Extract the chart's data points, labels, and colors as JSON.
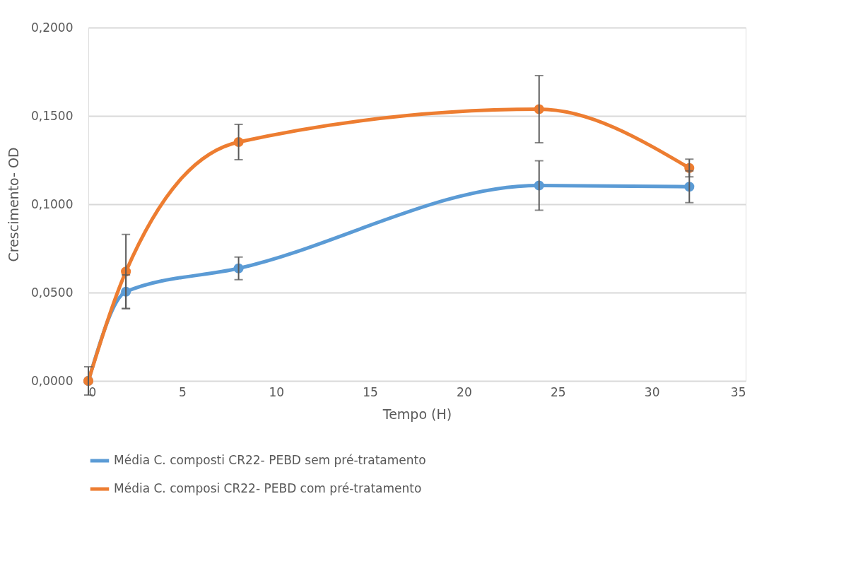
{
  "chart_data": {
    "type": "line",
    "xlabel": "Tempo (H)",
    "ylabel": "Crescimento- OD",
    "x": [
      0,
      2,
      8,
      24,
      32
    ],
    "series": [
      {
        "name": "Média C. composti CR22- PEBD sem pré-tratamento",
        "color": "#5b9bd5",
        "values": [
          0,
          0.0505,
          0.0637,
          0.1106,
          0.1099
        ],
        "errors": [
          null,
          0.0095,
          0.0064,
          0.014,
          0.009
        ]
      },
      {
        "name": "Média  C. composi CR22-  PEBD com pré-tratamento",
        "color": "#ed7d31",
        "values": [
          0,
          0.0619,
          0.1352,
          0.1538,
          0.1205
        ],
        "errors": [
          0.008,
          0.021,
          0.01,
          0.019,
          0.005
        ]
      }
    ],
    "xlim": [
      0,
      35
    ],
    "xticks": [
      0,
      5,
      10,
      15,
      20,
      25,
      30,
      35
    ],
    "ylim": [
      0,
      0.2
    ],
    "yticks": [
      {
        "value": 0,
        "label": "0,0000"
      },
      {
        "value": 0.05,
        "label": "0,0500"
      },
      {
        "value": 0.1,
        "label": "0,1000"
      },
      {
        "value": 0.15,
        "label": "0,1500"
      },
      {
        "value": 0.2,
        "label": "0,2000"
      }
    ],
    "grid": "y",
    "legend": "bottom",
    "marker": "circle",
    "line_style": "solid"
  }
}
